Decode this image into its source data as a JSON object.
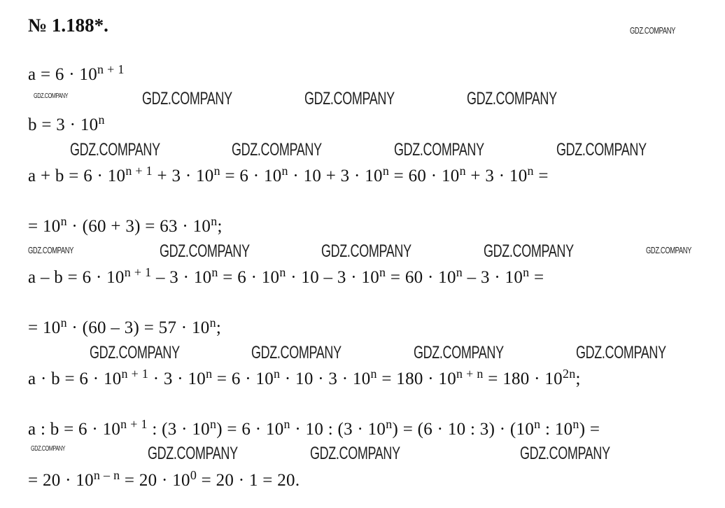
{
  "title": "№ 1.188*.",
  "watermark": "GDZ.COMPANY",
  "lines": [
    [
      {
        "t": "a = 6 · 10"
      },
      {
        "s": "n + 1"
      }
    ],
    [
      {
        "t": "b = 3 · 10"
      },
      {
        "s": "n"
      }
    ],
    [
      {
        "t": "a + b = 6 · 10"
      },
      {
        "s": "n + 1"
      },
      {
        "t": " + 3 · 10"
      },
      {
        "s": "n"
      },
      {
        "t": " = 6 · 10"
      },
      {
        "s": "n"
      },
      {
        "t": " · 10 + 3 · 10"
      },
      {
        "s": "n"
      },
      {
        "t": " = 60 · 10"
      },
      {
        "s": "n"
      },
      {
        "t": " + 3 · 10"
      },
      {
        "s": "n"
      },
      {
        "t": " ="
      }
    ],
    [
      {
        "t": "= 10"
      },
      {
        "s": "n"
      },
      {
        "t": " · (60 + 3) = 63 · 10"
      },
      {
        "s": "n"
      },
      {
        "t": ";"
      }
    ],
    [
      {
        "t": "a – b = 6 · 10"
      },
      {
        "s": "n + 1"
      },
      {
        "t": " – 3 · 10"
      },
      {
        "s": "n"
      },
      {
        "t": " = 6 · 10"
      },
      {
        "s": "n"
      },
      {
        "t": " · 10 – 3 · 10"
      },
      {
        "s": "n"
      },
      {
        "t": " = 60 · 10"
      },
      {
        "s": "n"
      },
      {
        "t": " – 3 · 10"
      },
      {
        "s": "n"
      },
      {
        "t": " ="
      }
    ],
    [
      {
        "t": "= 10"
      },
      {
        "s": "n"
      },
      {
        "t": " · (60 – 3) = 57 · 10"
      },
      {
        "s": "n"
      },
      {
        "t": ";"
      }
    ],
    [
      {
        "t": "a · b = 6 · 10"
      },
      {
        "s": "n + 1"
      },
      {
        "t": " · 3 · 10"
      },
      {
        "s": "n"
      },
      {
        "t": " = 6 · 10"
      },
      {
        "s": "n"
      },
      {
        "t": " · 10 · 3 · 10"
      },
      {
        "s": "n"
      },
      {
        "t": " = 180 · 10"
      },
      {
        "s": "n + n"
      },
      {
        "t": " = 180 · 10"
      },
      {
        "s": "2n"
      },
      {
        "t": ";"
      }
    ],
    [
      {
        "t": "a : b = 6 · 10"
      },
      {
        "s": "n + 1"
      },
      {
        "t": " : (3 · 10"
      },
      {
        "s": "n"
      },
      {
        "t": ") = 6 · 10"
      },
      {
        "s": "n"
      },
      {
        "t": " · 10 : (3 · 10"
      },
      {
        "s": "n"
      },
      {
        "t": ") = (6 · 10 : 3) · (10"
      },
      {
        "s": "n"
      },
      {
        "t": " : 10"
      },
      {
        "s": "n"
      },
      {
        "t": ") ="
      }
    ],
    [
      {
        "t": "= 20 · 10"
      },
      {
        "s": "n – n"
      },
      {
        "t": " = 20 · 10"
      },
      {
        "s": "0"
      },
      {
        "t": " = 20 · 1 = 20."
      }
    ]
  ]
}
